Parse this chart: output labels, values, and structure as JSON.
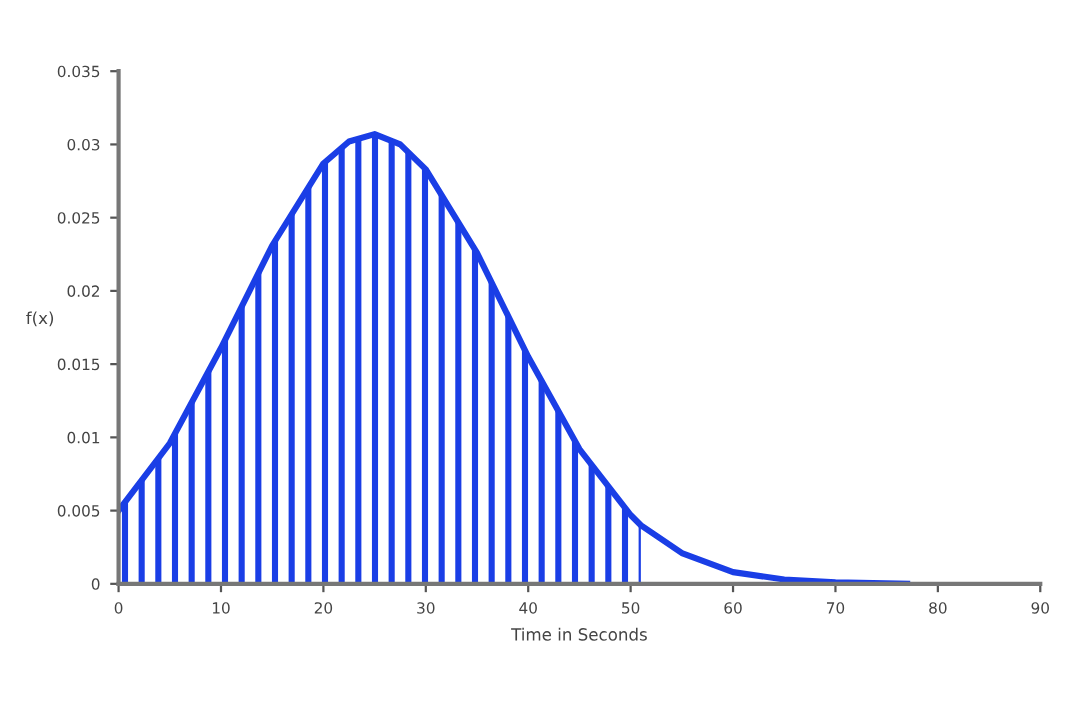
{
  "chart_data": {
    "type": "line",
    "xlabel": "Time in Seconds",
    "ylabel": "f(x)",
    "xlim": [
      0,
      90
    ],
    "xticks": [
      0,
      10,
      20,
      30,
      40,
      50,
      60,
      70,
      80,
      90
    ],
    "ylim": [
      0,
      0.035
    ],
    "yticks": [
      0,
      0.005,
      0.01,
      0.015,
      0.02,
      0.025,
      0.03,
      0.035
    ],
    "grid": false,
    "legend": false,
    "marker": "none",
    "line_style": "solid",
    "series": [
      {
        "type": "area",
        "color": "#1a3ee6",
        "x": [
          0,
          5,
          10,
          15,
          20,
          22.5,
          25,
          27.5,
          30,
          35,
          40,
          45,
          50,
          51
        ],
        "values": [
          0.005,
          0.0096,
          0.0161,
          0.0231,
          0.0287,
          0.0302,
          0.0307,
          0.03,
          0.0283,
          0.0226,
          0.0155,
          0.0092,
          0.0047,
          0.004
        ]
      },
      {
        "color": "#1a3ee6",
        "x": [
          0,
          5,
          10,
          15,
          20,
          22.5,
          25,
          27.5,
          30,
          35,
          40,
          45,
          50,
          51,
          55,
          60,
          65,
          70,
          77
        ],
        "values": [
          0.005,
          0.0096,
          0.0161,
          0.0231,
          0.0287,
          0.0302,
          0.0307,
          0.03,
          0.0283,
          0.0226,
          0.0155,
          0.0092,
          0.0047,
          0.004,
          0.0021,
          0.0008,
          0.0003,
          0.0001,
          0
        ]
      }
    ]
  }
}
